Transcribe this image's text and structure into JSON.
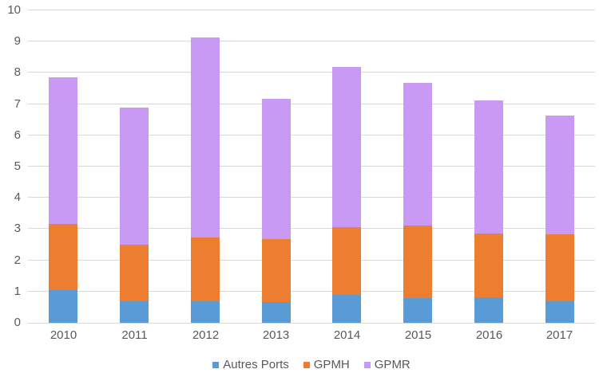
{
  "chart_data": {
    "type": "bar",
    "stacked": true,
    "title": "",
    "xlabel": "",
    "ylabel": "",
    "categories": [
      "2010",
      "2011",
      "2012",
      "2013",
      "2014",
      "2015",
      "2016",
      "2017"
    ],
    "series": [
      {
        "name": "Autres Ports",
        "color": "#5B9BD5",
        "values": [
          1.05,
          0.7,
          0.7,
          0.67,
          0.9,
          0.8,
          0.82,
          0.68
        ]
      },
      {
        "name": "GPMH",
        "color": "#ED7D31",
        "values": [
          2.11,
          1.8,
          2.02,
          2.02,
          2.15,
          2.32,
          2.04,
          2.15
        ]
      },
      {
        "name": "GPMR",
        "color": "#C89AF3",
        "values": [
          4.69,
          4.4,
          6.4,
          4.49,
          5.15,
          4.55,
          4.27,
          3.79
        ]
      }
    ],
    "ylim": [
      0,
      10
    ],
    "yticks": [
      "0",
      "1",
      "2",
      "3",
      "4",
      "5",
      "6",
      "7",
      "8",
      "9",
      "10"
    ],
    "grid": true,
    "legend_position": "bottom-center",
    "colors": {
      "background": "#FFFFFF",
      "gridline": "#D9D9D9",
      "axis_line": "#D9D9D9",
      "tick_label": "#595959"
    }
  }
}
